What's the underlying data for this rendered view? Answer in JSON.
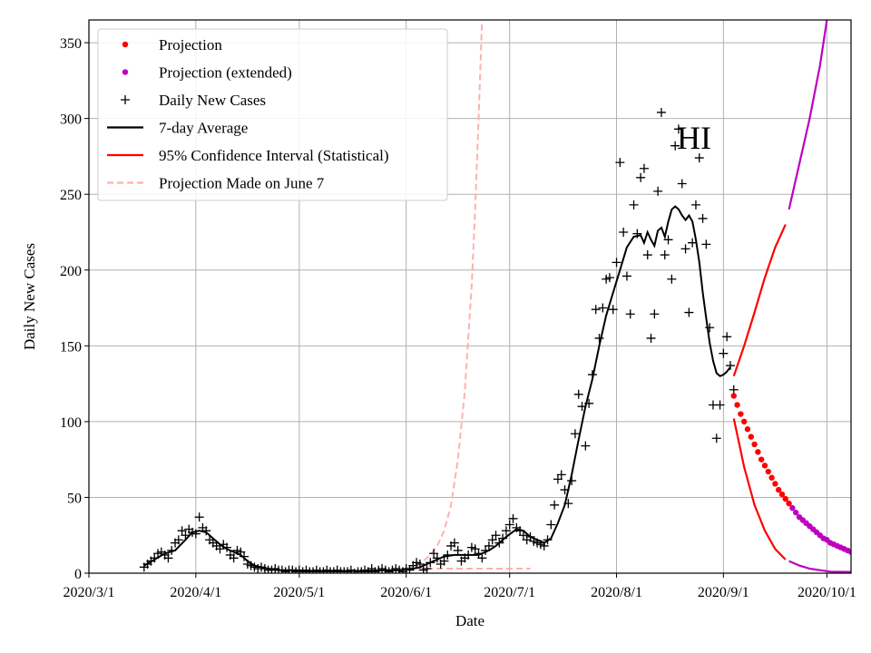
{
  "chart_data": {
    "type": "line",
    "title": "",
    "xlabel": "Date",
    "ylabel": "Daily New Cases",
    "annotation": "HI",
    "x_start": "2020-03-01",
    "xlim_days": [
      0,
      221
    ],
    "ylim": [
      0,
      365
    ],
    "grid": true,
    "legend_position": "top-left",
    "x_ticks": [
      {
        "day": 0,
        "label": "2020/3/1"
      },
      {
        "day": 31,
        "label": "2020/4/1"
      },
      {
        "day": 61,
        "label": "2020/5/1"
      },
      {
        "day": 92,
        "label": "2020/6/1"
      },
      {
        "day": 122,
        "label": "2020/7/1"
      },
      {
        "day": 153,
        "label": "2020/8/1"
      },
      {
        "day": 184,
        "label": "2020/9/1"
      },
      {
        "day": 214,
        "label": "2020/10/1"
      }
    ],
    "y_ticks": [
      0,
      50,
      100,
      150,
      200,
      250,
      300,
      350
    ],
    "legend": [
      {
        "key": "projection",
        "label": "Projection",
        "style": "dot",
        "color": "#ff0000"
      },
      {
        "key": "projection_ext",
        "label": "Projection (extended)",
        "style": "dot",
        "color": "#bf00bf"
      },
      {
        "key": "daily",
        "label": "Daily New Cases",
        "style": "plus",
        "color": "#000000"
      },
      {
        "key": "avg7",
        "label": "7-day Average",
        "style": "line",
        "color": "#000000"
      },
      {
        "key": "ci",
        "label": "95% Confidence Interval (Statistical)",
        "style": "line",
        "color": "#ff0000"
      },
      {
        "key": "june7",
        "label": "Projection Made on June 7",
        "style": "dashed",
        "color": "#ffb0b0"
      }
    ],
    "series": {
      "daily_new_cases": [
        [
          16,
          4
        ],
        [
          17,
          6
        ],
        [
          18,
          8
        ],
        [
          19,
          10
        ],
        [
          20,
          13
        ],
        [
          21,
          14
        ],
        [
          22,
          12
        ],
        [
          23,
          10
        ],
        [
          24,
          15
        ],
        [
          25,
          20
        ],
        [
          26,
          22
        ],
        [
          27,
          28
        ],
        [
          28,
          25
        ],
        [
          29,
          29
        ],
        [
          30,
          27
        ],
        [
          31,
          26
        ],
        [
          32,
          37
        ],
        [
          33,
          30
        ],
        [
          34,
          28
        ],
        [
          35,
          22
        ],
        [
          36,
          20
        ],
        [
          37,
          18
        ],
        [
          38,
          16
        ],
        [
          39,
          19
        ],
        [
          40,
          17
        ],
        [
          41,
          12
        ],
        [
          42,
          10
        ],
        [
          43,
          15
        ],
        [
          44,
          14
        ],
        [
          45,
          11
        ],
        [
          46,
          6
        ],
        [
          47,
          5
        ],
        [
          48,
          4
        ],
        [
          49,
          3
        ],
        [
          50,
          4
        ],
        [
          51,
          3
        ],
        [
          52,
          2
        ],
        [
          53,
          2
        ],
        [
          54,
          3
        ],
        [
          55,
          2
        ],
        [
          56,
          2
        ],
        [
          57,
          1
        ],
        [
          58,
          2
        ],
        [
          59,
          2
        ],
        [
          60,
          1
        ],
        [
          61,
          2
        ],
        [
          62,
          1
        ],
        [
          63,
          2
        ],
        [
          64,
          1
        ],
        [
          65,
          1
        ],
        [
          66,
          2
        ],
        [
          67,
          1
        ],
        [
          68,
          1
        ],
        [
          69,
          2
        ],
        [
          70,
          1
        ],
        [
          71,
          1
        ],
        [
          72,
          2
        ],
        [
          73,
          1
        ],
        [
          74,
          1
        ],
        [
          75,
          1
        ],
        [
          76,
          2
        ],
        [
          77,
          0
        ],
        [
          78,
          1
        ],
        [
          79,
          1
        ],
        [
          80,
          2
        ],
        [
          81,
          1
        ],
        [
          82,
          3
        ],
        [
          83,
          1
        ],
        [
          84,
          2
        ],
        [
          85,
          3
        ],
        [
          86,
          2
        ],
        [
          87,
          1
        ],
        [
          88,
          2
        ],
        [
          89,
          3
        ],
        [
          90,
          2
        ],
        [
          91,
          1
        ],
        [
          92,
          3
        ],
        [
          93,
          2
        ],
        [
          94,
          5
        ],
        [
          95,
          7
        ],
        [
          96,
          6
        ],
        [
          97,
          2
        ],
        [
          98,
          3
        ],
        [
          99,
          7
        ],
        [
          100,
          13
        ],
        [
          101,
          10
        ],
        [
          102,
          6
        ],
        [
          103,
          8
        ],
        [
          104,
          12
        ],
        [
          105,
          18
        ],
        [
          106,
          20
        ],
        [
          107,
          15
        ],
        [
          108,
          8
        ],
        [
          109,
          10
        ],
        [
          110,
          12
        ],
        [
          111,
          17
        ],
        [
          112,
          16
        ],
        [
          113,
          13
        ],
        [
          114,
          10
        ],
        [
          115,
          15
        ],
        [
          116,
          18
        ],
        [
          117,
          22
        ],
        [
          118,
          25
        ],
        [
          119,
          20
        ],
        [
          120,
          23
        ],
        [
          121,
          28
        ],
        [
          122,
          32
        ],
        [
          123,
          36
        ],
        [
          124,
          30
        ],
        [
          125,
          28
        ],
        [
          126,
          25
        ],
        [
          127,
          22
        ],
        [
          128,
          24
        ],
        [
          129,
          21
        ],
        [
          130,
          20
        ],
        [
          131,
          19
        ],
        [
          132,
          18
        ],
        [
          133,
          22
        ],
        [
          134,
          32
        ],
        [
          135,
          45
        ],
        [
          136,
          62
        ],
        [
          137,
          65
        ],
        [
          138,
          55
        ],
        [
          139,
          46
        ],
        [
          140,
          61
        ],
        [
          141,
          92
        ],
        [
          142,
          118
        ],
        [
          143,
          110
        ],
        [
          144,
          84
        ],
        [
          145,
          112
        ],
        [
          146,
          131
        ],
        [
          147,
          174
        ],
        [
          148,
          155
        ],
        [
          149,
          175
        ],
        [
          150,
          194
        ],
        [
          151,
          195
        ],
        [
          152,
          174
        ],
        [
          153,
          205
        ],
        [
          154,
          271
        ],
        [
          155,
          225
        ],
        [
          156,
          196
        ],
        [
          157,
          171
        ],
        [
          158,
          243
        ],
        [
          159,
          224
        ],
        [
          160,
          261
        ],
        [
          161,
          267
        ],
        [
          162,
          210
        ],
        [
          163,
          155
        ],
        [
          164,
          171
        ],
        [
          165,
          252
        ],
        [
          166,
          304
        ],
        [
          167,
          210
        ],
        [
          168,
          220
        ],
        [
          169,
          194
        ],
        [
          170,
          282
        ],
        [
          171,
          293
        ],
        [
          172,
          257
        ],
        [
          173,
          214
        ],
        [
          174,
          172
        ],
        [
          175,
          218
        ],
        [
          176,
          243
        ],
        [
          177,
          274
        ],
        [
          178,
          234
        ],
        [
          179,
          217
        ],
        [
          180,
          162
        ],
        [
          181,
          111
        ],
        [
          182,
          89
        ],
        [
          183,
          111
        ],
        [
          184,
          145
        ],
        [
          185,
          156
        ],
        [
          186,
          137
        ],
        [
          187,
          121
        ]
      ],
      "avg7": [
        [
          16,
          5
        ],
        [
          19,
          9
        ],
        [
          22,
          13
        ],
        [
          25,
          15
        ],
        [
          28,
          22
        ],
        [
          30,
          27
        ],
        [
          32,
          28
        ],
        [
          34,
          27
        ],
        [
          36,
          23
        ],
        [
          38,
          19
        ],
        [
          40,
          16
        ],
        [
          42,
          14
        ],
        [
          44,
          12
        ],
        [
          46,
          8
        ],
        [
          48,
          5
        ],
        [
          50,
          4
        ],
        [
          52,
          3
        ],
        [
          55,
          2
        ],
        [
          60,
          2
        ],
        [
          65,
          1.5
        ],
        [
          70,
          1.5
        ],
        [
          75,
          1.5
        ],
        [
          80,
          1.5
        ],
        [
          85,
          2
        ],
        [
          90,
          2
        ],
        [
          94,
          3
        ],
        [
          96,
          4
        ],
        [
          98,
          6
        ],
        [
          100,
          8
        ],
        [
          103,
          11
        ],
        [
          106,
          12
        ],
        [
          110,
          12
        ],
        [
          113,
          12
        ],
        [
          116,
          15
        ],
        [
          118,
          18
        ],
        [
          121,
          24
        ],
        [
          124,
          29
        ],
        [
          126,
          28
        ],
        [
          128,
          24
        ],
        [
          130,
          22
        ],
        [
          132,
          20
        ],
        [
          134,
          23
        ],
        [
          136,
          33
        ],
        [
          138,
          45
        ],
        [
          140,
          65
        ],
        [
          142,
          88
        ],
        [
          144,
          110
        ],
        [
          146,
          128
        ],
        [
          148,
          150
        ],
        [
          150,
          170
        ],
        [
          152,
          185
        ],
        [
          154,
          200
        ],
        [
          156,
          215
        ],
        [
          158,
          222
        ],
        [
          160,
          223
        ],
        [
          161,
          218
        ],
        [
          162,
          225
        ],
        [
          163,
          220
        ],
        [
          164,
          216
        ],
        [
          165,
          226
        ],
        [
          166,
          228
        ],
        [
          167,
          222
        ],
        [
          168,
          232
        ],
        [
          169,
          240
        ],
        [
          170,
          242
        ],
        [
          171,
          240
        ],
        [
          172,
          236
        ],
        [
          173,
          233
        ],
        [
          174,
          236
        ],
        [
          175,
          232
        ],
        [
          176,
          220
        ],
        [
          177,
          205
        ],
        [
          178,
          185
        ],
        [
          179,
          168
        ],
        [
          180,
          152
        ],
        [
          181,
          140
        ],
        [
          182,
          132
        ],
        [
          183,
          130
        ],
        [
          184,
          131
        ],
        [
          185,
          133
        ],
        [
          186,
          136
        ]
      ],
      "projection": [
        [
          187,
          117
        ],
        [
          188,
          111
        ],
        [
          189,
          105
        ],
        [
          190,
          100
        ],
        [
          191,
          95
        ],
        [
          192,
          90
        ],
        [
          193,
          85
        ],
        [
          194,
          80
        ],
        [
          195,
          75
        ],
        [
          196,
          71
        ],
        [
          197,
          67
        ],
        [
          198,
          63
        ],
        [
          199,
          59
        ],
        [
          200,
          55
        ],
        [
          201,
          52
        ],
        [
          202,
          49
        ],
        [
          203,
          46
        ]
      ],
      "projection_extended": [
        [
          204,
          43
        ],
        [
          205,
          40
        ],
        [
          206,
          37
        ],
        [
          207,
          35
        ],
        [
          208,
          33
        ],
        [
          209,
          31
        ],
        [
          210,
          29
        ],
        [
          211,
          27
        ],
        [
          212,
          25
        ],
        [
          213,
          23
        ],
        [
          214,
          22
        ],
        [
          215,
          20
        ],
        [
          216,
          19
        ],
        [
          217,
          18
        ],
        [
          218,
          17
        ],
        [
          219,
          16
        ],
        [
          220,
          15
        ],
        [
          221,
          14
        ],
        [
          222,
          13
        ]
      ],
      "ci_upper": [
        [
          187,
          130
        ],
        [
          190,
          150
        ],
        [
          193,
          172
        ],
        [
          196,
          195
        ],
        [
          199,
          215
        ],
        [
          202,
          230
        ]
      ],
      "ci_upper_extended": [
        [
          203,
          240
        ],
        [
          206,
          270
        ],
        [
          209,
          300
        ],
        [
          212,
          335
        ],
        [
          214,
          365
        ]
      ],
      "ci_lower": [
        [
          187,
          102
        ],
        [
          190,
          70
        ],
        [
          193,
          45
        ],
        [
          196,
          28
        ],
        [
          199,
          16
        ],
        [
          202,
          9
        ]
      ],
      "ci_lower_extended": [
        [
          203,
          8
        ],
        [
          206,
          5
        ],
        [
          209,
          3
        ],
        [
          212,
          2
        ],
        [
          215,
          1
        ],
        [
          222,
          0.8
        ]
      ],
      "june7_projection": [
        [
          92,
          3
        ],
        [
          95,
          5
        ],
        [
          97,
          8
        ],
        [
          99,
          12
        ],
        [
          101,
          18
        ],
        [
          103,
          28
        ],
        [
          105,
          45
        ],
        [
          107,
          75
        ],
        [
          109,
          120
        ],
        [
          111,
          190
        ],
        [
          112,
          240
        ],
        [
          113,
          300
        ],
        [
          114,
          365
        ]
      ],
      "june7_lower": [
        [
          95,
          3
        ],
        [
          100,
          3
        ],
        [
          105,
          3
        ],
        [
          110,
          3
        ],
        [
          115,
          3
        ],
        [
          120,
          3
        ],
        [
          125,
          3
        ],
        [
          128,
          3
        ]
      ]
    }
  }
}
